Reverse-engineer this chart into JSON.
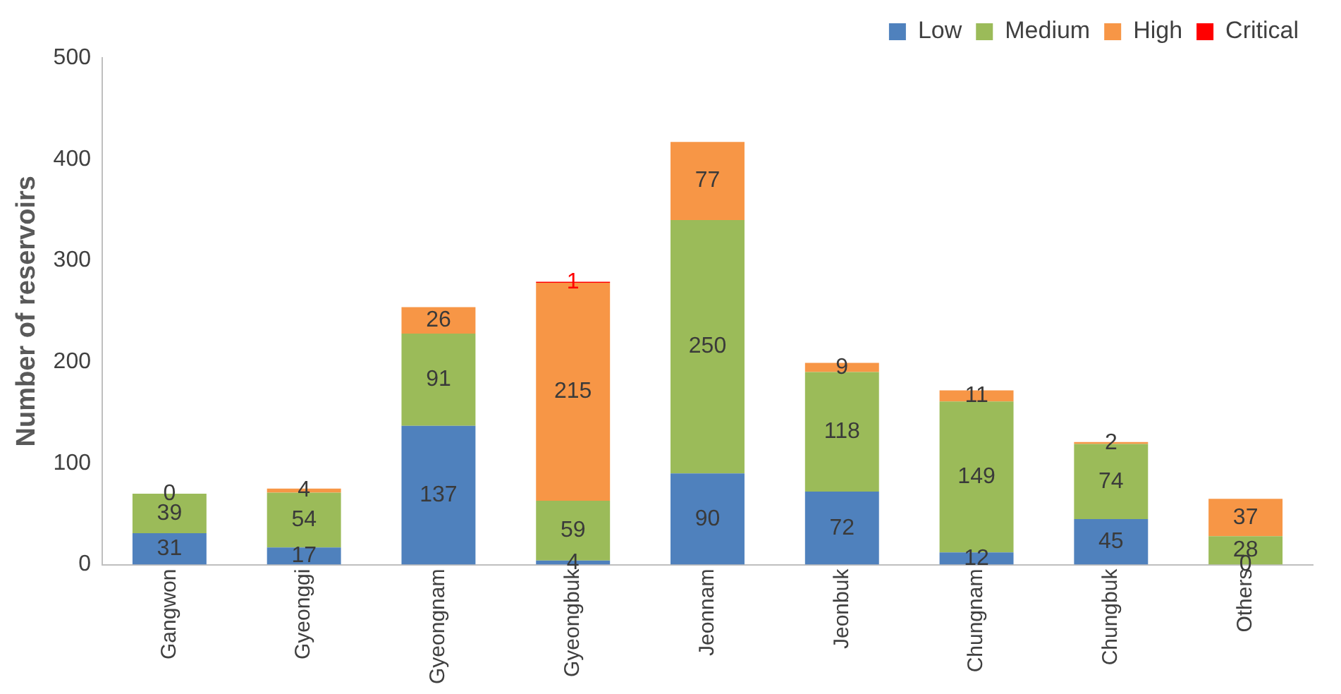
{
  "chart_data": {
    "type": "bar",
    "stacked": true,
    "ylabel": "Number of reservoirs",
    "categories": [
      "Gangwon",
      "Gyeonggi",
      "Gyeongnam",
      "Gyeongbuk",
      "Jeonnam",
      "Jeonbuk",
      "Chungnam",
      "Chungbuk",
      "Others"
    ],
    "ylim": [
      0,
      500
    ],
    "yticks": [
      0,
      100,
      200,
      300,
      400,
      500
    ],
    "grid": false,
    "legend": "top right",
    "series": [
      {
        "name": "Low",
        "color": "#4f81bd",
        "values": [
          31,
          17,
          137,
          4,
          90,
          72,
          12,
          45,
          0
        ],
        "value_labels": [
          "31",
          "17",
          "137",
          "4",
          "90",
          "72",
          "12",
          "45",
          "0"
        ]
      },
      {
        "name": "Medium",
        "color": "#9bbb59",
        "values": [
          39,
          54,
          91,
          59,
          250,
          118,
          149,
          74,
          28
        ],
        "value_labels": [
          "39",
          "54",
          "91",
          "59",
          "250",
          "118",
          "149",
          "74",
          "28"
        ]
      },
      {
        "name": "High",
        "color": "#f79646",
        "values": [
          0,
          4,
          26,
          215,
          77,
          9,
          11,
          2,
          37
        ],
        "value_labels": [
          "0",
          "4",
          "26",
          "215",
          "77",
          "9",
          "11",
          "2",
          "37"
        ]
      },
      {
        "name": "Critical",
        "color": "#ff0000",
        "values": [
          0,
          0,
          0,
          1,
          0,
          0,
          0,
          0,
          0
        ],
        "value_labels": [
          null,
          null,
          null,
          "1",
          null,
          null,
          null,
          null,
          null
        ]
      }
    ]
  }
}
